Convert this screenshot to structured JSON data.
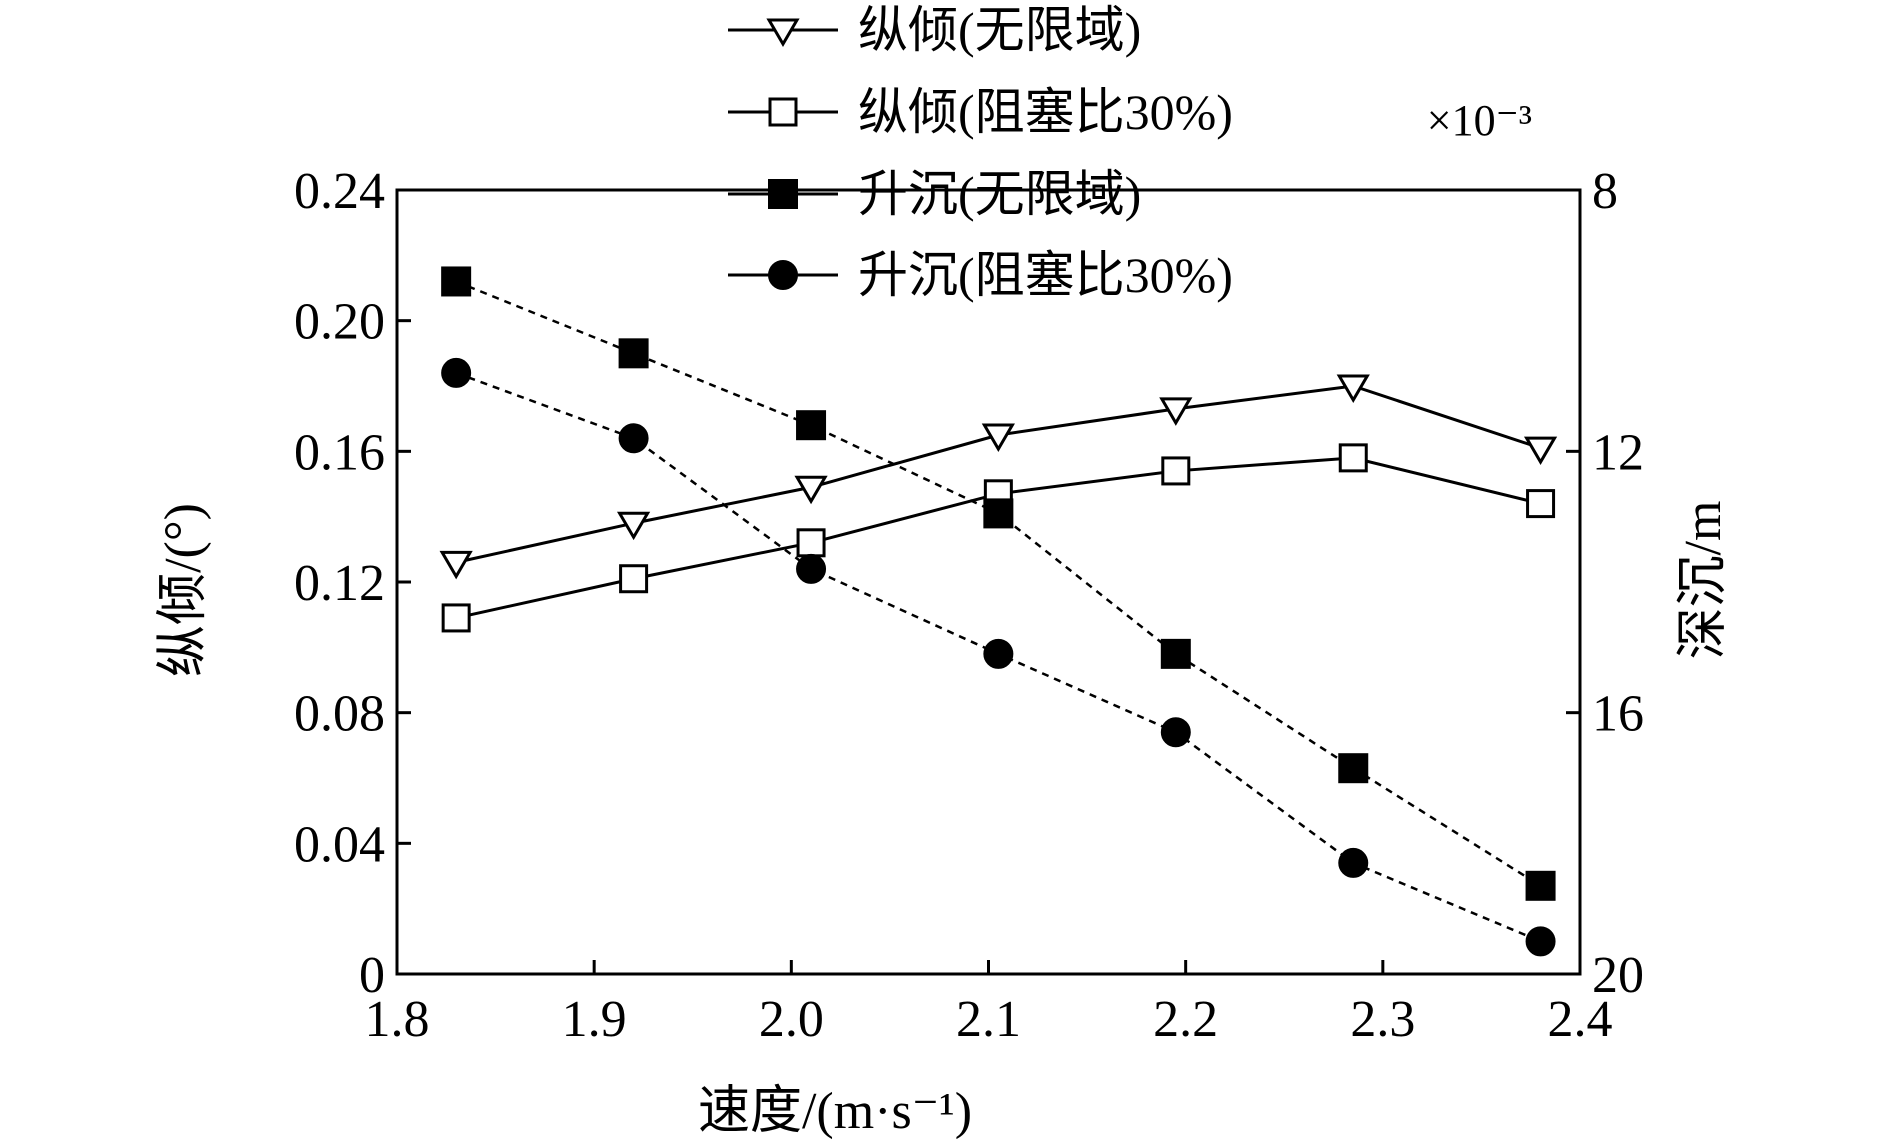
{
  "chart_data": {
    "type": "line",
    "title": "",
    "xlabel": "速度/(m·s⁻¹)",
    "ylabel": "纵倾/(°)",
    "y2label": "深沉/m",
    "y2_exponent_label": "×10⁻³",
    "xlim": [
      1.8,
      2.4
    ],
    "ylim": [
      0,
      0.24
    ],
    "y2lim": [
      8,
      20
    ],
    "y2_inverted": true,
    "x_ticks": [
      "1.8",
      "1.9",
      "2.0",
      "2.1",
      "2.2",
      "2.3",
      "2.4"
    ],
    "y_ticks": [
      "0",
      "0.04",
      "0.08",
      "0.12",
      "0.16",
      "0.20",
      "0.24"
    ],
    "y2_ticks": [
      "8",
      "12",
      "16",
      "20"
    ],
    "grid": false,
    "legend_position": "top-center",
    "series": [
      {
        "name": "纵倾(无限域)",
        "axis": "left",
        "marker": "triangle-down-open",
        "line": "solid",
        "x": [
          1.83,
          1.92,
          2.01,
          2.105,
          2.195,
          2.285,
          2.38
        ],
        "y": [
          0.126,
          0.138,
          0.149,
          0.165,
          0.173,
          0.18,
          0.161
        ]
      },
      {
        "name": "纵倾(阻塞比30%)",
        "axis": "left",
        "marker": "square-open",
        "line": "solid",
        "x": [
          1.83,
          1.92,
          2.01,
          2.105,
          2.195,
          2.285,
          2.38
        ],
        "y": [
          0.109,
          0.121,
          0.132,
          0.147,
          0.154,
          0.158,
          0.144
        ]
      },
      {
        "name": "升沉(无限域)",
        "axis": "right",
        "marker": "square-filled",
        "line": "dashed",
        "x": [
          1.83,
          1.92,
          2.01,
          2.105,
          2.195,
          2.285,
          2.38
        ],
        "y": [
          9.4,
          10.5,
          11.6,
          12.95,
          15.1,
          16.85,
          18.65
        ]
      },
      {
        "name": "升沉(阻塞比30%)",
        "axis": "right",
        "marker": "circle-filled",
        "line": "dashed",
        "x": [
          1.83,
          1.92,
          2.01,
          2.105,
          2.195,
          2.285,
          2.38
        ],
        "y": [
          10.8,
          11.8,
          13.8,
          15.1,
          16.3,
          18.3,
          19.5
        ]
      }
    ]
  }
}
